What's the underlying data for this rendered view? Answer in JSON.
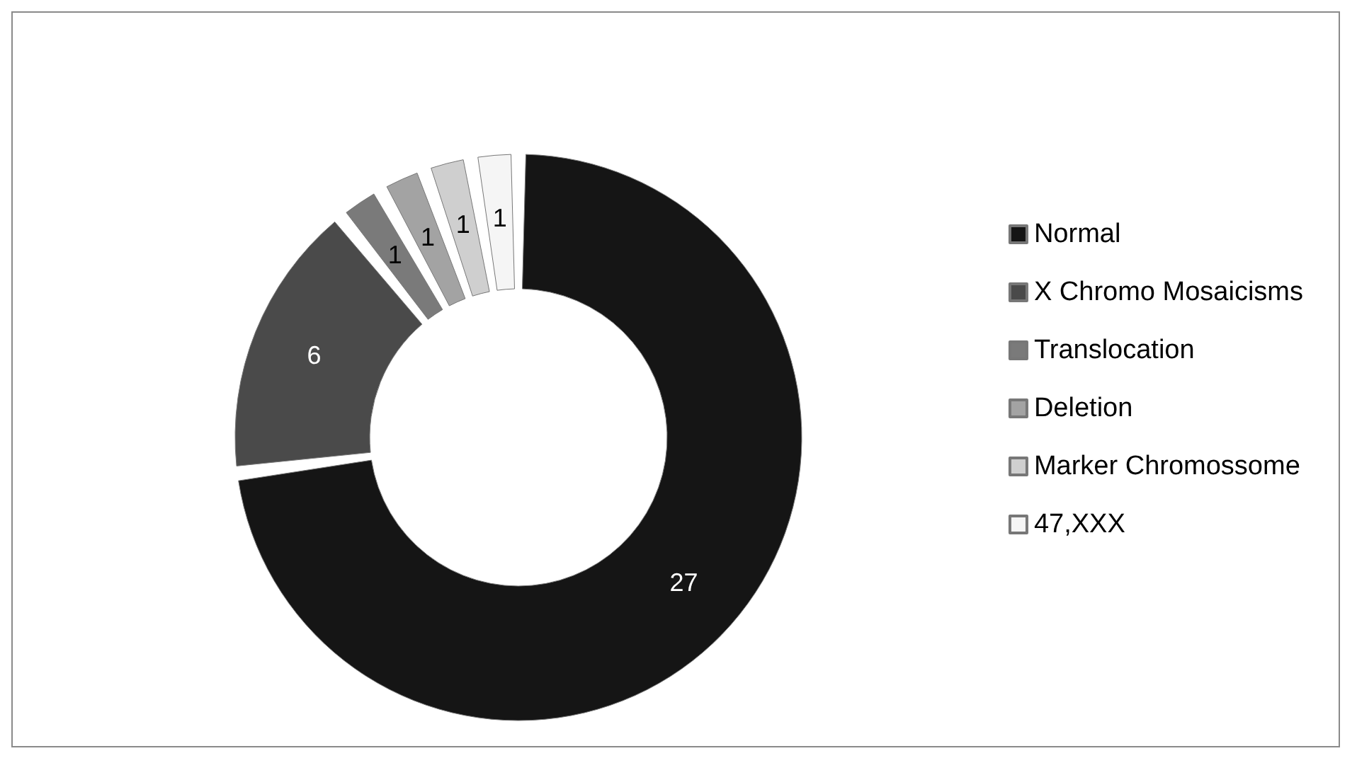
{
  "chart_data": {
    "type": "donut",
    "categories": [
      "Normal",
      "X Chromo Mosaicisms",
      "Translocation",
      "Deletion",
      "Marker Chromossome",
      "47,XXX"
    ],
    "values": [
      27,
      6,
      1,
      1,
      1,
      1
    ],
    "colors": [
      "#151515",
      "#4a4a4a",
      "#7a7a7a",
      "#a3a3a3",
      "#cfcfcf",
      "#f5f5f5"
    ],
    "data_labels": true,
    "legend": "right"
  }
}
